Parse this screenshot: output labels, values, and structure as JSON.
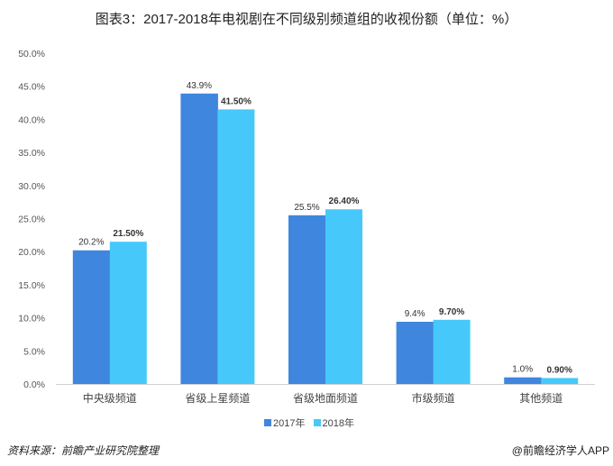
{
  "chart_data": {
    "type": "bar",
    "title": "图表3：2017-2018年电视剧在不同级别频道组的收视份额（单位：%）",
    "categories": [
      "中央级频道",
      "省级上星频道",
      "省级地面频道",
      "市级频道",
      "其他频道"
    ],
    "series": [
      {
        "name": "2017年",
        "values": [
          20.2,
          43.9,
          25.5,
          9.4,
          1.0
        ],
        "labels": [
          "20.2%",
          "43.9%",
          "25.5%",
          "9.4%",
          "1.0%"
        ],
        "color": "#3f86df"
      },
      {
        "name": "2018年",
        "values": [
          21.5,
          41.5,
          26.4,
          9.7,
          0.9
        ],
        "labels": [
          "21.50%",
          "41.50%",
          "26.40%",
          "9.70%",
          "0.90%"
        ],
        "color": "#46c9fa"
      }
    ],
    "ylim": [
      0,
      50
    ],
    "yticks": [
      "0.0%",
      "5.0%",
      "10.0%",
      "15.0%",
      "20.0%",
      "25.0%",
      "30.0%",
      "35.0%",
      "40.0%",
      "45.0%",
      "50.0%"
    ],
    "xlabel": "",
    "ylabel": "",
    "legend": "bottom",
    "grid": false
  },
  "footer": {
    "source": "资料来源：前瞻产业研究院整理",
    "credit": "@前瞻经济学人APP"
  }
}
